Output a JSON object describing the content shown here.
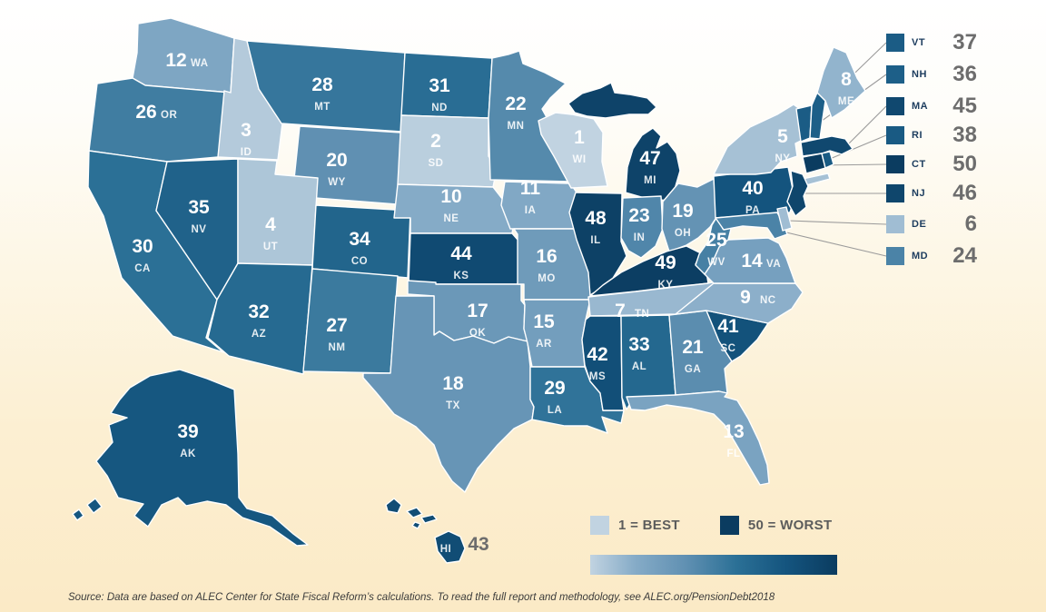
{
  "chart_data": {
    "type": "heatmap",
    "subtype": "us-state-choropleth",
    "title": "",
    "value_meaning": "state rank, 1 = best to 50 = worst",
    "states": [
      {
        "abbr": "WA",
        "rank": 12
      },
      {
        "abbr": "OR",
        "rank": 26
      },
      {
        "abbr": "CA",
        "rank": 30
      },
      {
        "abbr": "NV",
        "rank": 35
      },
      {
        "abbr": "ID",
        "rank": 3
      },
      {
        "abbr": "UT",
        "rank": 4
      },
      {
        "abbr": "AZ",
        "rank": 32
      },
      {
        "abbr": "MT",
        "rank": 28
      },
      {
        "abbr": "WY",
        "rank": 20
      },
      {
        "abbr": "CO",
        "rank": 34
      },
      {
        "abbr": "NM",
        "rank": 27
      },
      {
        "abbr": "ND",
        "rank": 31
      },
      {
        "abbr": "SD",
        "rank": 2
      },
      {
        "abbr": "NE",
        "rank": 10
      },
      {
        "abbr": "KS",
        "rank": 44
      },
      {
        "abbr": "OK",
        "rank": 17
      },
      {
        "abbr": "TX",
        "rank": 18
      },
      {
        "abbr": "MN",
        "rank": 22
      },
      {
        "abbr": "IA",
        "rank": 11
      },
      {
        "abbr": "MO",
        "rank": 16
      },
      {
        "abbr": "AR",
        "rank": 15
      },
      {
        "abbr": "LA",
        "rank": 29
      },
      {
        "abbr": "WI",
        "rank": 1
      },
      {
        "abbr": "IL",
        "rank": 48
      },
      {
        "abbr": "MS",
        "rank": 42
      },
      {
        "abbr": "IN",
        "rank": 23
      },
      {
        "abbr": "KY",
        "rank": 49
      },
      {
        "abbr": "TN",
        "rank": 7
      },
      {
        "abbr": "AL",
        "rank": 33
      },
      {
        "abbr": "MI",
        "rank": 47
      },
      {
        "abbr": "OH",
        "rank": 19
      },
      {
        "abbr": "WV",
        "rank": 25
      },
      {
        "abbr": "GA",
        "rank": 21
      },
      {
        "abbr": "FL",
        "rank": 13
      },
      {
        "abbr": "SC",
        "rank": 41
      },
      {
        "abbr": "NC",
        "rank": 9
      },
      {
        "abbr": "VA",
        "rank": 14
      },
      {
        "abbr": "PA",
        "rank": 40
      },
      {
        "abbr": "NY",
        "rank": 5
      },
      {
        "abbr": "ME",
        "rank": 8
      },
      {
        "abbr": "AK",
        "rank": 39
      },
      {
        "abbr": "HI",
        "rank": 43
      },
      {
        "abbr": "VT",
        "rank": 37
      },
      {
        "abbr": "NH",
        "rank": 36
      },
      {
        "abbr": "MA",
        "rank": 45
      },
      {
        "abbr": "RI",
        "rank": 38
      },
      {
        "abbr": "CT",
        "rank": 50
      },
      {
        "abbr": "NJ",
        "rank": 46
      },
      {
        "abbr": "DE",
        "rank": 6
      },
      {
        "abbr": "MD",
        "rank": 24
      }
    ],
    "small_state_legend_order": [
      "VT",
      "NH",
      "MA",
      "RI",
      "CT",
      "NJ",
      "DE",
      "MD"
    ],
    "color_scale": {
      "ranks": [
        1,
        10,
        20,
        30,
        40,
        50
      ],
      "colors": [
        "#c1d3e1",
        "#85abc7",
        "#6090b2",
        "#2b7096",
        "#14547e",
        "#0b3c60"
      ]
    },
    "legend": {
      "best_label": "1 = BEST",
      "worst_label": "50 = WORST",
      "position": "bottom-right"
    },
    "grid": false
  },
  "footer": {
    "source": "Source: Data are based on ALEC Center for State Fiscal Reform’s calculations. To read the full report and methodology, see ALEC.org/PensionDebt2018"
  }
}
